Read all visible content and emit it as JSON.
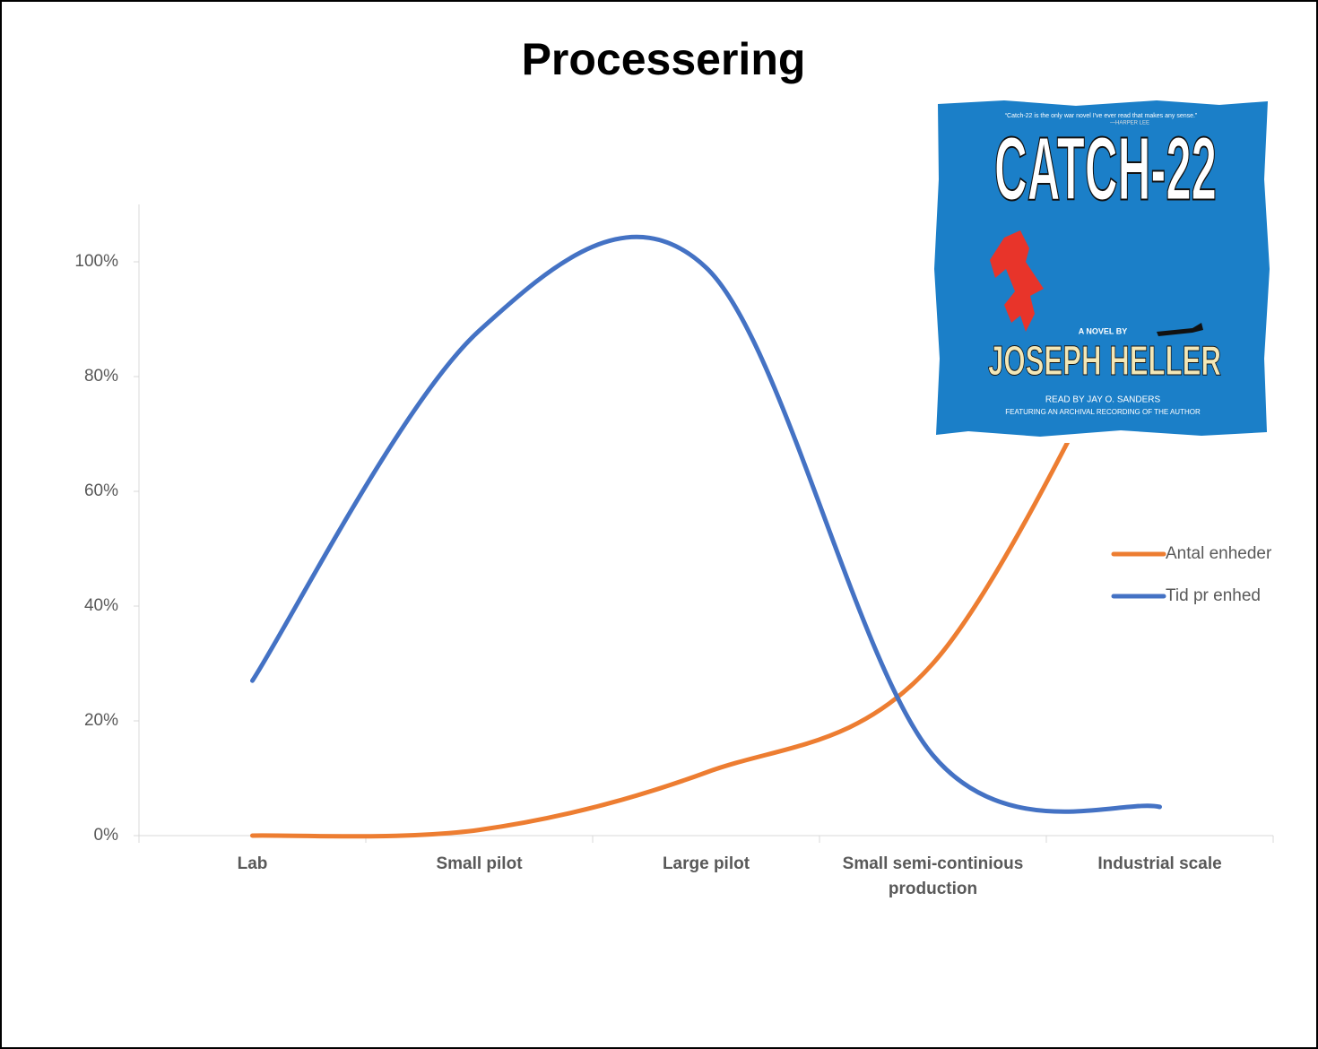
{
  "chart_data": {
    "type": "line",
    "title": "Processering",
    "categories": [
      "Lab",
      "Small pilot",
      "Large pilot",
      "Small semi-continious production",
      "Industrial scale"
    ],
    "series": [
      {
        "name": "Antal enheder",
        "color": "#ed7d31",
        "values": [
          0,
          1,
          11,
          30,
          100
        ]
      },
      {
        "name": "Tid pr enhed",
        "color": "#4472c4",
        "values": [
          27,
          88,
          99,
          14,
          5
        ]
      }
    ],
    "ylim": [
      0,
      110
    ],
    "yticks": [
      {
        "value": 0,
        "label": "0%"
      },
      {
        "value": 20,
        "label": "20%"
      },
      {
        "value": 40,
        "label": "40%"
      },
      {
        "value": 60,
        "label": "60%"
      },
      {
        "value": 80,
        "label": "80%"
      },
      {
        "value": 100,
        "label": "100%"
      }
    ],
    "smooth": true,
    "legend": "right",
    "inset": {
      "quote": "“Catch-22 is the only war novel I've ever read that makes any sense.”",
      "quote_by": "—HARPER LEE",
      "title": "CATCH-22",
      "byline": "A NOVEL BY",
      "author": "JOSEPH HELLER",
      "reader": "READ BY JAY O. SANDERS",
      "note": "FEATURING AN ARCHIVAL RECORDING OF THE AUTHOR"
    }
  }
}
